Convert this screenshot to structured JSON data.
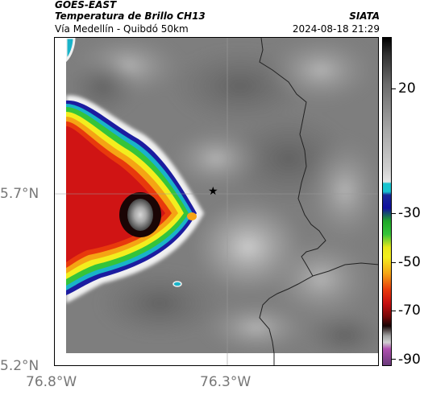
{
  "header": {
    "satellite": "GOES-EAST",
    "product": "Temperatura de Brillo CH13",
    "route": "Vía Medellín - Quibdó 50km",
    "org": "SIATA",
    "datetime": "2024-08-18 21:29"
  },
  "map": {
    "lat_labels": [
      "5.7°N",
      "5.2°N"
    ],
    "lon_labels": [
      "76.8°W",
      "76.3°W"
    ],
    "marker_icon": "star-icon"
  },
  "colorbar": {
    "labels": [
      "20",
      "-30",
      "-50",
      "-70",
      "-90"
    ],
    "unit_values": [
      20,
      -30,
      -50,
      -70,
      -90
    ]
  }
}
